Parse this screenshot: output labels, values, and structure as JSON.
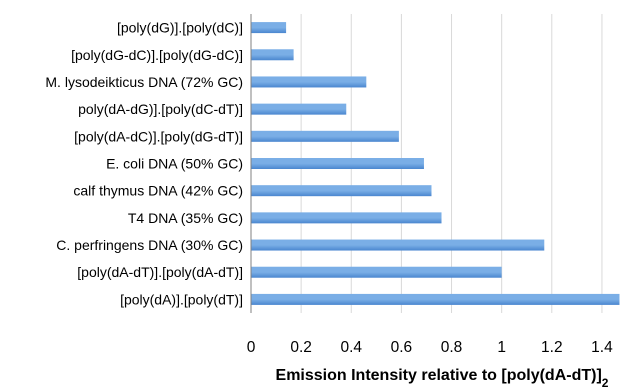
{
  "chart_data": {
    "type": "bar",
    "orientation": "horizontal",
    "categories": [
      "[poly(dG)].[poly(dC)]",
      "[poly(dG-dC)].[poly(dG-dC)]",
      "M. lysodeikticus DNA (72% GC)",
      "poly(dA-dG)].[poly(dC-dT)]",
      "[poly(dA-dC)].[poly(dG-dT)]",
      "E. coli DNA (50% GC)",
      "calf thymus DNA (42% GC)",
      "T4 DNA (35% GC)",
      "C. perfringens DNA (30% GC)",
      "[poly(dA-dT)].[poly(dA-dT)]",
      "[poly(dA)].[poly(dT)]"
    ],
    "values": [
      0.14,
      0.17,
      0.46,
      0.38,
      0.59,
      0.69,
      0.72,
      0.76,
      1.17,
      1.0,
      1.47
    ],
    "xlabel": "Emission Intensity relative to [poly(dA-dT)]",
    "xlabel_subscript": "2",
    "xlim": [
      0,
      1.5
    ],
    "xticks": [
      0,
      0.2,
      0.4,
      0.6,
      0.8,
      1,
      1.2,
      1.4
    ],
    "grid": "vertical",
    "bar_color": "#7aaee6",
    "bar_color_dark": "#4a86cf"
  }
}
